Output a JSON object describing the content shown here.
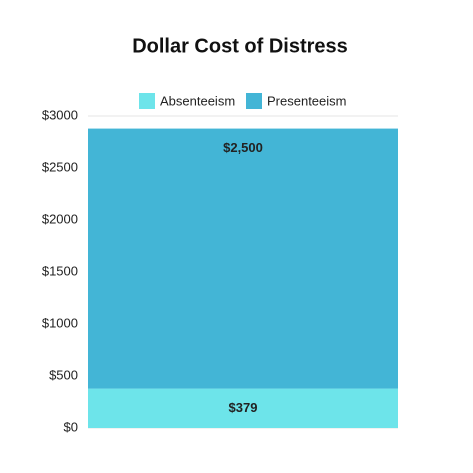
{
  "chart_data": {
    "type": "bar",
    "stacked": true,
    "title": "Dollar Cost of Distress",
    "categories": [
      null
    ],
    "series": [
      {
        "name": "Absenteeism",
        "color": "#6de4ea",
        "values": [
          379
        ],
        "value_labels": [
          "$379"
        ]
      },
      {
        "name": "Presenteeism",
        "color": "#43b5d6",
        "values": [
          2500
        ],
        "value_labels": [
          "$2,500"
        ]
      }
    ],
    "ylim": [
      0,
      3000
    ],
    "yticks": [
      {
        "value": 0,
        "label": "$0"
      },
      {
        "value": 500,
        "label": "$500"
      },
      {
        "value": 1000,
        "label": "$1000"
      },
      {
        "value": 1500,
        "label": "$1500"
      },
      {
        "value": 2000,
        "label": "$2000"
      },
      {
        "value": 2500,
        "label": "$2500"
      },
      {
        "value": 3000,
        "label": "$3000"
      }
    ],
    "grid": true,
    "legend": "top"
  }
}
